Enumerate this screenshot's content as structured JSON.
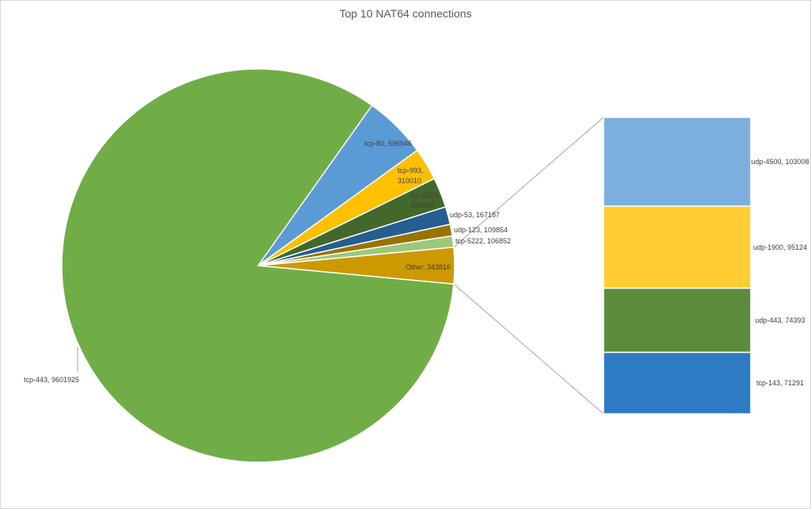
{
  "chart_data": {
    "type": "pie",
    "title": "Top 10 NAT64 connections",
    "subtype": "bar-of-pie",
    "slices": [
      {
        "label": "tcp-443",
        "value": 9601925,
        "color": "#70AD47"
      },
      {
        "label": "tcp-80",
        "value": 596946,
        "color": "#5B9BD5"
      },
      {
        "label": "tcp-993",
        "value": 310010,
        "color": "#FFC000"
      },
      {
        "label": "tcp-5223",
        "value": 283808,
        "color": "#43682B"
      },
      {
        "label": "udp-53",
        "value": 167187,
        "color": "#255E91"
      },
      {
        "label": "udp-123",
        "value": 109854,
        "color": "#997300"
      },
      {
        "label": "tcp-5222",
        "value": 106852,
        "color": "#9BC97A"
      },
      {
        "label": "Other",
        "value": 343816,
        "color": "#CC9900"
      }
    ],
    "other_breakdown": [
      {
        "label": "udp-4500",
        "value": 103008,
        "color": "#7CAFDD"
      },
      {
        "label": "udp-1900",
        "value": 95124,
        "color": "#FFCD33"
      },
      {
        "label": "udp-443",
        "value": 74393,
        "color": "#5B8C3C"
      },
      {
        "label": "tcp-143",
        "value": 71291,
        "color": "#2E7BC4"
      }
    ],
    "label_format": "{label}, {value}"
  }
}
